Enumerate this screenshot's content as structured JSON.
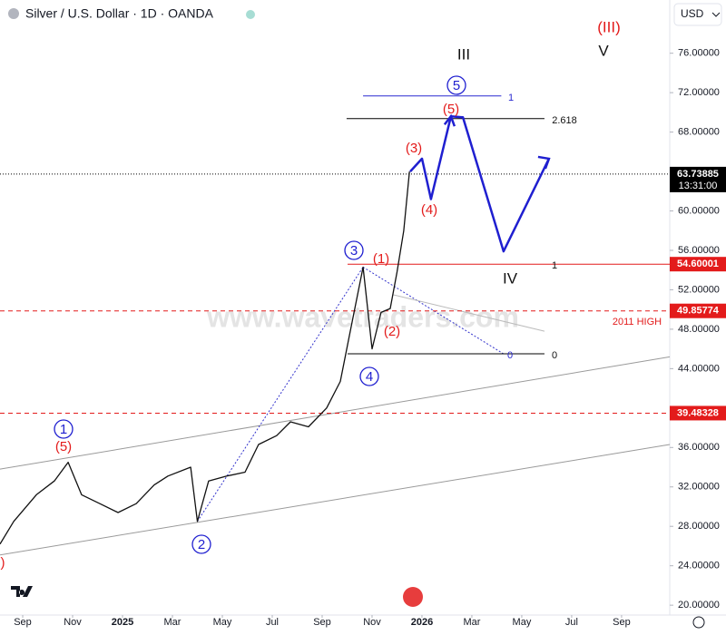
{
  "header": {
    "title": "Silver / U.S. Dollar · 1D · OANDA",
    "currency": "USD"
  },
  "watermark": "www.wavetraders.com",
  "chart_data": {
    "type": "line",
    "xlim": [
      -0.91,
      25.93
    ],
    "xticks": [
      {
        "value": 0,
        "label": "Sep"
      },
      {
        "value": 2,
        "label": "Nov"
      },
      {
        "value": 4,
        "label": "2025"
      },
      {
        "value": 6,
        "label": "Mar"
      },
      {
        "value": 8,
        "label": "May"
      },
      {
        "value": 10,
        "label": "Jul"
      },
      {
        "value": 12,
        "label": "Sep"
      },
      {
        "value": 14,
        "label": "Nov"
      },
      {
        "value": 16,
        "label": "2026"
      },
      {
        "value": 18,
        "label": "Mar"
      },
      {
        "value": 20,
        "label": "May"
      },
      {
        "value": 22,
        "label": "Jul"
      },
      {
        "value": 24,
        "label": "Sep"
      }
    ],
    "ylim": [
      19,
      81.4
    ],
    "yticks": [
      {
        "value": 20,
        "label": "20.00000"
      },
      {
        "value": 24,
        "label": "24.00000"
      },
      {
        "value": 28,
        "label": "28.00000"
      },
      {
        "value": 32,
        "label": "32.00000"
      },
      {
        "value": 36,
        "label": "36.00000"
      },
      {
        "value": 44,
        "label": "44.00000"
      },
      {
        "value": 48,
        "label": "48.00000"
      },
      {
        "value": 52,
        "label": "52.00000"
      },
      {
        "value": 56,
        "label": "56.00000"
      },
      {
        "value": 60,
        "label": "60.00000"
      },
      {
        "value": 68,
        "label": "68.00000"
      },
      {
        "value": 72,
        "label": "72.00000"
      },
      {
        "value": 76,
        "label": "76.00000"
      }
    ],
    "series": [
      {
        "color": "#111111",
        "x": [
          -0.91,
          -0.36,
          0.55,
          1.27,
          1.82,
          2.36,
          3.09,
          3.82,
          4.55,
          5.27,
          5.82,
          6.73,
          7.0,
          7.45,
          8.18,
          8.91,
          9.45,
          10.18,
          10.73,
          11.45,
          12.18,
          12.73,
          13.09,
          13.64,
          14.0,
          14.36,
          14.73,
          15.0,
          15.27,
          15.5
        ],
        "values": [
          26.2,
          28.5,
          31.2,
          32.6,
          34.5,
          31.2,
          30.3,
          29.4,
          30.3,
          32.2,
          33.1,
          34.0,
          28.5,
          32.6,
          33.1,
          33.5,
          36.3,
          37.2,
          38.6,
          38.1,
          40.0,
          42.7,
          47.3,
          54.3,
          46.0,
          49.7,
          50.1,
          53.8,
          58.0,
          64.0
        ]
      },
      {
        "color": "#1f1fd0",
        "x": [
          15.53,
          16.0,
          16.36,
          17.16,
          17.64,
          19.27,
          21.09
        ],
        "values": [
          64.0,
          65.3,
          61.2,
          69.6,
          69.5,
          55.9,
          65.3
        ]
      }
    ],
    "levels": [
      {
        "value": 63.73885,
        "time": "13:31:00",
        "color": "#000000"
      },
      {
        "value": 54.60001,
        "color": "#e31b1b"
      },
      {
        "value": 49.85774,
        "color": "#e31b1b"
      },
      {
        "value": 39.48328,
        "color": "#e31b1b"
      }
    ],
    "trendlines": [
      {
        "color": "#9a9a9a",
        "x": [
          -0.91,
          25.93
        ],
        "values": [
          33.8,
          45.2
        ]
      },
      {
        "color": "#9a9a9a",
        "x": [
          -0.91,
          25.93
        ],
        "values": [
          25.1,
          36.3
        ]
      },
      {
        "color": "#3333cc",
        "x": [
          7.0,
          13.64
        ],
        "values": [
          28.5,
          54.3
        ]
      },
      {
        "color": "#3333cc",
        "x": [
          13.64,
          19.27
        ],
        "values": [
          54.3,
          45.5
        ]
      },
      {
        "color": "#bbbbbb",
        "x": [
          14.84,
          20.91
        ],
        "values": [
          51.5,
          47.8
        ]
      },
      {
        "color": "#2a2ad0",
        "x": [
          13.64,
          19.18
        ],
        "values": [
          71.67,
          71.67
        ]
      },
      {
        "color": "#000000",
        "x": [
          12.98,
          20.91
        ],
        "values": [
          69.37,
          69.37
        ]
      },
      {
        "color": "#000000",
        "x": [
          13.02,
          20.91
        ],
        "values": [
          45.51,
          45.51
        ]
      }
    ],
    "annotations": [
      {
        "text": "1",
        "color": "#1f1fd0",
        "circled": true
      },
      {
        "text": "(5)",
        "color": "#e31b1b"
      },
      {
        "text": "2",
        "color": "#1f1fd0",
        "circled": true
      },
      {
        "text": "3",
        "color": "#1f1fd0",
        "circled": true
      },
      {
        "text": "4",
        "color": "#1f1fd0",
        "circled": true
      },
      {
        "text": "(1)",
        "color": "#e31b1b"
      },
      {
        "text": "(2)",
        "color": "#e31b1b"
      },
      {
        "text": "(3)",
        "color": "#e31b1b"
      },
      {
        "text": "(4)",
        "color": "#e31b1b"
      },
      {
        "text": "(5)",
        "color": "#e31b1b"
      },
      {
        "text": "5",
        "color": "#1f1fd0",
        "circled": true
      },
      {
        "text": "III",
        "color": "#111111"
      },
      {
        "text": "(III)",
        "color": "#e31b1b"
      },
      {
        "text": "V",
        "color": "#111111"
      },
      {
        "text": "IV",
        "color": "#111111"
      },
      {
        "text": "2.618",
        "color": "#111111"
      },
      {
        "text": "1",
        "color": "#111111"
      },
      {
        "text": "1",
        "color": "#2a2ad0"
      },
      {
        "text": "0",
        "color": "#2a2ad0"
      },
      {
        "text": "0",
        "color": "#111111"
      },
      {
        "text": "2011  HIGH",
        "color": "#e31b1b"
      },
      {
        "text": ")",
        "color": "#e31b1b"
      }
    ]
  }
}
